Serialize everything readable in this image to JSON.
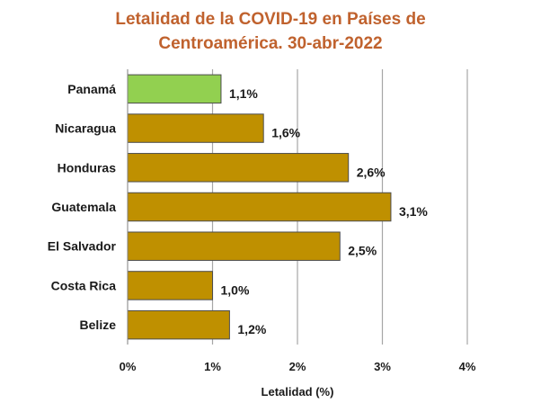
{
  "chart_data": {
    "type": "bar",
    "orientation": "horizontal",
    "title_lines": [
      "Letalidad de la COVID-19 en Países de",
      "Centroamérica. 30-abr-2022"
    ],
    "xlabel": "Letalidad (%)",
    "ylabel": "",
    "categories": [
      "Panamá",
      "Nicaragua",
      "Honduras",
      "Guatemala",
      "El Salvador",
      "Costa Rica",
      "Belize"
    ],
    "values": [
      1.1,
      1.6,
      2.6,
      3.1,
      2.5,
      1.0,
      1.2
    ],
    "value_labels": [
      "1,1%",
      "1,6%",
      "2,6%",
      "3,1%",
      "2,5%",
      "1,0%",
      "1,2%"
    ],
    "xlim": [
      0,
      4
    ],
    "x_ticks": [
      0,
      1,
      2,
      3,
      4
    ],
    "x_tick_labels": [
      "0%",
      "1%",
      "2%",
      "3%",
      "4%"
    ],
    "grid": "vertical",
    "colors": {
      "bar": "#bf9000",
      "highlight_bar": "#92d050",
      "highlight_category": "Panamá",
      "bar_outline": "#4d4d4d",
      "grid": "#a6a6a6",
      "title": "#c0622e"
    }
  }
}
